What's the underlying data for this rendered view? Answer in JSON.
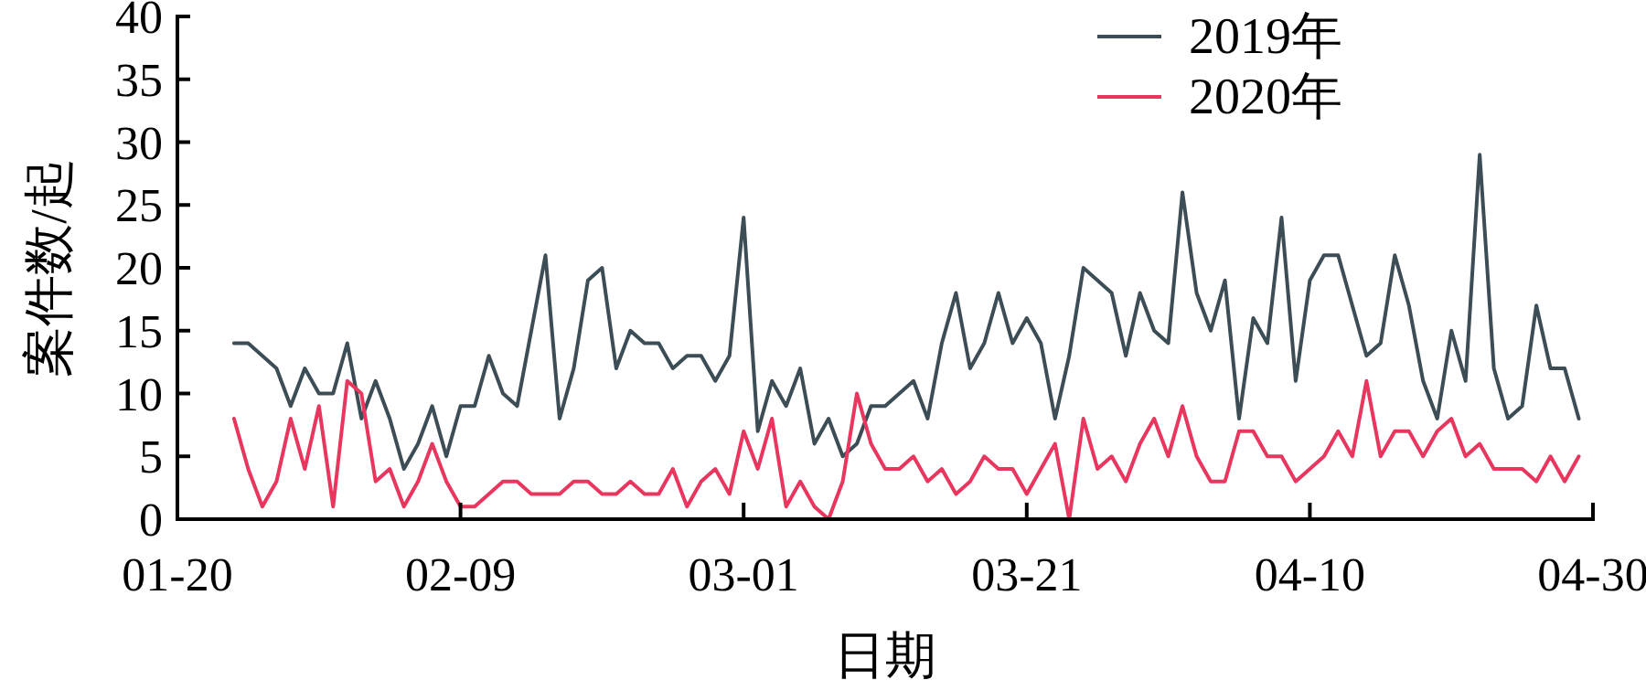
{
  "chart_data": {
    "type": "line",
    "xlabel": "日期",
    "ylabel": "案件数/起",
    "x": [
      "--01-24",
      "--01-25",
      "--01-26",
      "--01-27",
      "--01-28",
      "--01-29",
      "--01-30",
      "--01-31",
      "--02-01",
      "--02-02",
      "--02-03",
      "--02-04",
      "--02-05",
      "--02-06",
      "--02-07",
      "--02-08",
      "--02-09",
      "--02-10",
      "--02-11",
      "--02-12",
      "--02-13",
      "--02-14",
      "--02-15",
      "--02-16",
      "--02-17",
      "--02-18",
      "--02-19",
      "--02-20",
      "--02-21",
      "--02-22",
      "--02-23",
      "--02-24",
      "--02-25",
      "--02-26",
      "--02-27",
      "--02-28",
      "--03-01",
      "--03-02",
      "--03-03",
      "--03-04",
      "--03-05",
      "--03-06",
      "--03-07",
      "--03-08",
      "--03-09",
      "--03-10",
      "--03-11",
      "--03-12",
      "--03-13",
      "--03-14",
      "--03-15",
      "--03-16",
      "--03-17",
      "--03-18",
      "--03-19",
      "--03-20",
      "--03-21",
      "--03-22",
      "--03-23",
      "--03-24",
      "--03-25",
      "--03-26",
      "--03-27",
      "--03-28",
      "--03-29",
      "--03-30",
      "--03-31",
      "--04-01",
      "--04-02",
      "--04-03",
      "--04-04",
      "--04-05",
      "--04-06",
      "--04-07",
      "--04-08",
      "--04-09",
      "--04-10",
      "--04-11",
      "--04-12",
      "--04-13",
      "--04-14",
      "--04-15",
      "--04-16",
      "--04-17",
      "--04-18",
      "--04-19",
      "--04-20",
      "--04-21",
      "--04-22",
      "--04-23",
      "--04-24",
      "--04-25",
      "--04-26",
      "--04-27",
      "--04-28",
      "--04-29"
    ],
    "series": [
      {
        "name": "2019年",
        "color": "#3d4d55",
        "values": [
          14,
          14,
          13,
          12,
          9,
          12,
          10,
          10,
          14,
          8,
          11,
          8,
          4,
          6,
          9,
          5,
          9,
          9,
          13,
          10,
          9,
          15,
          21,
          8,
          12,
          19,
          20,
          12,
          15,
          14,
          14,
          12,
          13,
          13,
          11,
          13,
          24,
          7,
          11,
          9,
          12,
          6,
          8,
          5,
          6,
          9,
          9,
          10,
          11,
          8,
          14,
          18,
          12,
          14,
          18,
          14,
          16,
          14,
          8,
          13,
          20,
          19,
          18,
          13,
          18,
          15,
          14,
          26,
          18,
          15,
          19,
          8,
          16,
          14,
          24,
          11,
          19,
          21,
          21,
          17,
          13,
          14,
          21,
          17,
          11,
          8,
          15,
          11,
          29,
          12,
          8,
          9,
          17,
          12,
          12,
          8
        ]
      },
      {
        "name": "2020年",
        "color": "#e8365f",
        "values": [
          8,
          4,
          1,
          3,
          8,
          4,
          9,
          1,
          11,
          10,
          3,
          4,
          1,
          3,
          6,
          3,
          1,
          1,
          2,
          3,
          3,
          2,
          2,
          2,
          3,
          3,
          2,
          2,
          3,
          2,
          2,
          4,
          1,
          3,
          4,
          2,
          7,
          4,
          8,
          1,
          3,
          1,
          0,
          3,
          10,
          6,
          4,
          4,
          5,
          3,
          4,
          2,
          3,
          5,
          4,
          4,
          2,
          4,
          6,
          0,
          8,
          4,
          5,
          3,
          6,
          8,
          5,
          9,
          5,
          3,
          3,
          7,
          7,
          5,
          5,
          3,
          4,
          5,
          7,
          5,
          11,
          5,
          7,
          7,
          5,
          7,
          8,
          5,
          6,
          4,
          4,
          4,
          3,
          5,
          3,
          5
        ]
      }
    ],
    "xlim": [
      "--01-20",
      "--04-30"
    ],
    "xticks": [
      {
        "value": "--01-20",
        "label": "01-20"
      },
      {
        "value": "--02-09",
        "label": "02-09"
      },
      {
        "value": "--03-01",
        "label": "03-01"
      },
      {
        "value": "--03-21",
        "label": "03-21"
      },
      {
        "value": "--04-10",
        "label": "04-10"
      },
      {
        "value": "--04-30",
        "label": "04-30"
      }
    ],
    "ylim": [
      0,
      40
    ],
    "yticks": [
      0,
      5,
      10,
      15,
      20,
      25,
      30,
      35,
      40
    ],
    "legend": "top right",
    "marker": "none",
    "line_style": "solid",
    "grid": false
  }
}
